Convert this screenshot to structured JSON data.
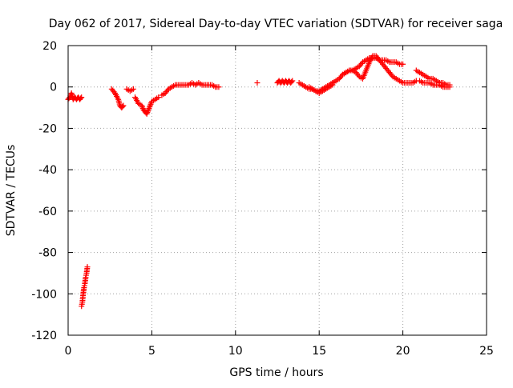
{
  "chart_data": {
    "type": "scatter",
    "title": "Day 062 of 2017, Sidereal Day-to-day VTEC variation (SDTVAR) for receiver saga",
    "xlabel": "GPS time / hours",
    "ylabel": "SDTVAR / TECUs",
    "xlim": [
      0,
      25
    ],
    "ylim": [
      -120,
      20
    ],
    "x_ticks": [
      0,
      5,
      10,
      15,
      20,
      25
    ],
    "y_ticks": [
      -120,
      -100,
      -80,
      -60,
      -40,
      -20,
      0,
      20
    ],
    "x_tick_labels": [
      "0",
      "5",
      "10",
      "15",
      "20",
      "25"
    ],
    "y_tick_labels": [
      "-120",
      "-100",
      "-80",
      "-60",
      "-40",
      "-20",
      "0",
      "20"
    ],
    "grid": true,
    "marker": "+",
    "color": "#ff0000",
    "series": [
      {
        "name": "SDTVAR",
        "segments": [
          {
            "x": [
              0.0,
              0.1,
              0.2,
              0.3,
              0.4,
              0.5,
              0.6,
              0.7,
              0.8
            ],
            "y": [
              -6,
              -5,
              -3,
              -6,
              -5,
              -6,
              -5,
              -6,
              -5
            ]
          },
          {
            "x": [
              0.8,
              0.85,
              0.9,
              0.95,
              1.0,
              1.05,
              1.1,
              1.15
            ],
            "y": [
              -106,
              -104,
              -100,
              -97,
              -95,
              -92,
              -90,
              -87
            ]
          },
          {
            "x": [
              2.6,
              2.8,
              3.0,
              3.1,
              3.2,
              3.3
            ],
            "y": [
              -1,
              -3,
              -6,
              -9,
              -10,
              -9
            ]
          },
          {
            "x": [
              3.5,
              3.7,
              3.9
            ],
            "y": [
              -1,
              -2,
              -1
            ]
          },
          {
            "x": [
              4.0,
              4.2,
              4.4,
              4.5,
              4.6,
              4.7,
              4.8,
              4.9,
              5.0,
              5.2,
              5.4
            ],
            "y": [
              -5,
              -8,
              -9,
              -11,
              -12,
              -13,
              -11,
              -9,
              -7,
              -6,
              -5
            ]
          },
          {
            "x": [
              5.6,
              5.8,
              6.0,
              6.2,
              6.4,
              6.6,
              6.8,
              7.0,
              7.2,
              7.4,
              7.6,
              7.8,
              8.0,
              8.2,
              8.4,
              8.6,
              8.8,
              9.0
            ],
            "y": [
              -4,
              -3,
              -1,
              0,
              1,
              1,
              1,
              1,
              1,
              2,
              1,
              2,
              1,
              1,
              1,
              1,
              0,
              0
            ]
          },
          {
            "x": [
              11.3
            ],
            "y": [
              2
            ]
          },
          {
            "x": [
              12.5,
              12.6,
              12.7,
              12.8,
              12.9,
              13.0,
              13.1,
              13.2,
              13.3,
              13.4
            ],
            "y": [
              2,
              3,
              2,
              3,
              2,
              3,
              2,
              3,
              2,
              3
            ]
          },
          {
            "x": [
              13.8,
              14.0,
              14.2,
              14.4,
              14.6,
              14.8,
              15.0,
              15.2,
              15.4,
              15.6,
              15.8,
              16.0,
              16.2,
              16.4,
              16.6,
              16.8,
              17.0,
              17.2,
              17.4,
              17.6,
              17.8,
              18.0,
              18.2,
              18.4,
              18.6,
              18.8,
              19.0,
              19.2,
              19.4,
              19.6,
              19.8,
              20.0
            ],
            "y": [
              2,
              1,
              0,
              -1,
              -1,
              -2,
              -2,
              -1,
              0,
              1,
              2,
              3,
              4,
              6,
              7,
              8,
              8,
              9,
              10,
              12,
              13,
              14,
              14,
              14,
              13,
              13,
              13,
              12,
              12,
              12,
              11,
              11
            ]
          },
          {
            "x": [
              14.4,
              14.6,
              14.8,
              15.0,
              15.2,
              15.4,
              15.6,
              15.8
            ],
            "y": [
              0,
              -1,
              -2,
              -3,
              -2,
              -1,
              0,
              1
            ]
          },
          {
            "x": [
              16.4,
              16.6,
              16.8,
              17.0,
              17.2,
              17.4,
              17.6,
              17.8,
              18.0,
              18.2,
              18.4,
              18.6,
              18.8,
              19.0,
              19.2,
              19.4,
              19.6,
              19.8,
              20.0,
              20.2,
              20.4,
              20.6,
              20.8
            ],
            "y": [
              6,
              7,
              8,
              8,
              7,
              5,
              4,
              8,
              12,
              15,
              15,
              13,
              11,
              9,
              7,
              5,
              4,
              3,
              2,
              2,
              2,
              2,
              3
            ]
          },
          {
            "x": [
              20.8,
              21.0,
              21.2,
              21.4,
              21.6,
              21.8,
              22.0,
              22.2,
              22.4,
              22.6,
              22.8
            ],
            "y": [
              8,
              7,
              6,
              5,
              4,
              4,
              3,
              2,
              2,
              1,
              1
            ]
          },
          {
            "x": [
              21.0,
              21.2,
              21.4,
              21.6,
              21.8,
              22.0,
              22.2,
              22.4,
              22.6,
              22.8
            ],
            "y": [
              3,
              2,
              2,
              2,
              1,
              1,
              1,
              0,
              0,
              0
            ]
          }
        ]
      }
    ]
  }
}
